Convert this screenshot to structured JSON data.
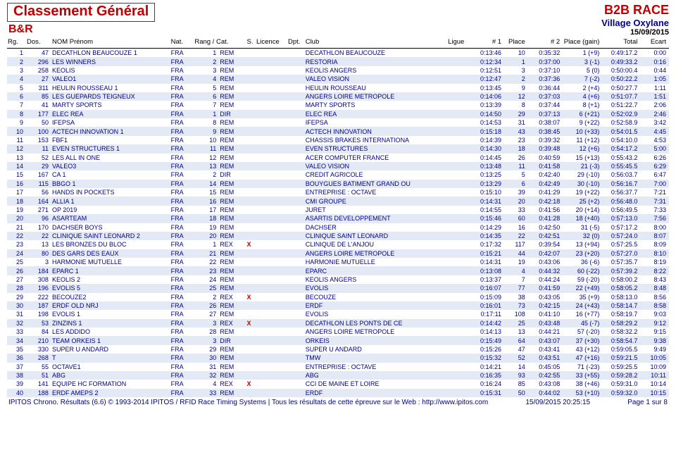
{
  "header": {
    "title": "Classement Général",
    "subtitle": "B&R",
    "race": "B2B RACE",
    "venue": "Village Oxylane",
    "date": "15/09/2015"
  },
  "columns": {
    "rg": "Rg.",
    "dos": "Dos.",
    "nom": "NOM Prénom",
    "nat": "Nat.",
    "rc": "Rang / Cat.",
    "s": "S.",
    "lic": "Licence",
    "dpt": "Dpt.",
    "club": "Club",
    "ligue": "Ligue",
    "n1": "# 1",
    "pl1": "Place",
    "n2": "# 2",
    "pl2": "Place (gain)",
    "tot": "Total",
    "ec": "Ecart"
  },
  "rows": [
    {
      "rg": 1,
      "dos": 47,
      "nom": "DECATHLON BEAUCOUZE 1",
      "nat": "FRA",
      "rc": 1,
      "s": "REM",
      "x": "",
      "club": "DECATHLON BEAUCOUZE",
      "n1": "0:13:46",
      "pl1": 10,
      "n2": "0:35:32",
      "pl2": "1 (+9)",
      "tot": "0:49:17.2",
      "ec": "0:00"
    },
    {
      "rg": 2,
      "dos": 296,
      "nom": "LES WINNERS",
      "nat": "FRA",
      "rc": 2,
      "s": "REM",
      "x": "",
      "club": "RESTORIA",
      "n1": "0:12:34",
      "pl1": 1,
      "n2": "0:37:00",
      "pl2": "3 (-1)",
      "tot": "0:49:33.2",
      "ec": "0:16"
    },
    {
      "rg": 3,
      "dos": 258,
      "nom": "KEOLIS",
      "nat": "FRA",
      "rc": 3,
      "s": "REM",
      "x": "",
      "club": "KEOLIS ANGERS",
      "n1": "0:12:51",
      "pl1": 3,
      "n2": "0:37:10",
      "pl2": "5 (0)",
      "tot": "0:50:00.4",
      "ec": "0:44"
    },
    {
      "rg": 4,
      "dos": 27,
      "nom": "VALEO1",
      "nat": "FRA",
      "rc": 4,
      "s": "REM",
      "x": "",
      "club": "VALEO VISION",
      "n1": "0:12:47",
      "pl1": 2,
      "n2": "0:37:36",
      "pl2": "7 (-2)",
      "tot": "0:50:22.2",
      "ec": "1:05"
    },
    {
      "rg": 5,
      "dos": 311,
      "nom": "HEULIN ROUSSEAU 1",
      "nat": "FRA",
      "rc": 5,
      "s": "REM",
      "x": "",
      "club": "HEULIN ROUSSEAU",
      "n1": "0:13:45",
      "pl1": 9,
      "n2": "0:36:44",
      "pl2": "2 (+4)",
      "tot": "0:50:27.7",
      "ec": "1:11"
    },
    {
      "rg": 6,
      "dos": 85,
      "nom": "LES GUEPARDS TEIGNEUX",
      "nat": "FRA",
      "rc": 6,
      "s": "REM",
      "x": "",
      "club": "ANGERS LOIRE METROPOLE",
      "n1": "0:14:06",
      "pl1": 12,
      "n2": "0:37:03",
      "pl2": "4 (+6)",
      "tot": "0:51:07.7",
      "ec": "1:51"
    },
    {
      "rg": 7,
      "dos": 41,
      "nom": "MARTY SPORTS",
      "nat": "FRA",
      "rc": 7,
      "s": "REM",
      "x": "",
      "club": "MARTY SPORTS",
      "n1": "0:13:39",
      "pl1": 8,
      "n2": "0:37:44",
      "pl2": "8 (+1)",
      "tot": "0:51:22.7",
      "ec": "2:06"
    },
    {
      "rg": 8,
      "dos": 177,
      "nom": "ELEC REA",
      "nat": "FRA",
      "rc": 1,
      "s": "DIR",
      "x": "",
      "club": "ELEC REA",
      "n1": "0:14:50",
      "pl1": 29,
      "n2": "0:37:13",
      "pl2": "6 (+21)",
      "tot": "0:52:02.9",
      "ec": "2:46"
    },
    {
      "rg": 9,
      "dos": 50,
      "nom": "IFEPSA",
      "nat": "FRA",
      "rc": 8,
      "s": "REM",
      "x": "",
      "club": "IFEPSA",
      "n1": "0:14:53",
      "pl1": 31,
      "n2": "0:38:07",
      "pl2": "9 (+22)",
      "tot": "0:52:58.9",
      "ec": "3:42"
    },
    {
      "rg": 10,
      "dos": 100,
      "nom": "ACTECH INNOVATION 1",
      "nat": "FRA",
      "rc": 9,
      "s": "REM",
      "x": "",
      "club": "ACTECH INNOVATION",
      "n1": "0:15:18",
      "pl1": 43,
      "n2": "0:38:45",
      "pl2": "10 (+33)",
      "tot": "0:54:01.5",
      "ec": "4:45"
    },
    {
      "rg": 11,
      "dos": 153,
      "nom": "FBF1",
      "nat": "FRA",
      "rc": 10,
      "s": "REM",
      "x": "",
      "club": "CHASSIS BRAKES INTERNATIONA",
      "n1": "0:14:39",
      "pl1": 23,
      "n2": "0:39:32",
      "pl2": "11 (+12)",
      "tot": "0:54:10.0",
      "ec": "4:53"
    },
    {
      "rg": 12,
      "dos": 11,
      "nom": "EVEN STRUCTURES 1",
      "nat": "FRA",
      "rc": 11,
      "s": "REM",
      "x": "",
      "club": "EVEN STRUCTURES",
      "n1": "0:14:30",
      "pl1": 18,
      "n2": "0:39:48",
      "pl2": "12 (+6)",
      "tot": "0:54:17.2",
      "ec": "5:00"
    },
    {
      "rg": 13,
      "dos": 52,
      "nom": "LES ALL IN ONE",
      "nat": "FRA",
      "rc": 12,
      "s": "REM",
      "x": "",
      "club": "ACER COMPUTER FRANCE",
      "n1": "0:14:45",
      "pl1": 26,
      "n2": "0:40:59",
      "pl2": "15 (+13)",
      "tot": "0:55:43.2",
      "ec": "6:26"
    },
    {
      "rg": 14,
      "dos": 29,
      "nom": "VALEO3",
      "nat": "FRA",
      "rc": 13,
      "s": "REM",
      "x": "",
      "club": "VALEO VISION",
      "n1": "0:13:48",
      "pl1": 11,
      "n2": "0:41:58",
      "pl2": "21 (-3)",
      "tot": "0:55:45.5",
      "ec": "6:29"
    },
    {
      "rg": 15,
      "dos": 167,
      "nom": "CA 1",
      "nat": "FRA",
      "rc": 2,
      "s": "DIR",
      "x": "",
      "club": "CREDIT AGRICOLE",
      "n1": "0:13:25",
      "pl1": 5,
      "n2": "0:42:40",
      "pl2": "29 (-10)",
      "tot": "0:56:03.7",
      "ec": "6:47"
    },
    {
      "rg": 16,
      "dos": 115,
      "nom": "BBGO 1",
      "nat": "FRA",
      "rc": 14,
      "s": "REM",
      "x": "",
      "club": "BOUYGUES BATIMENT GRAND OU",
      "n1": "0:13:29",
      "pl1": 6,
      "n2": "0:42:49",
      "pl2": "30 (-10)",
      "tot": "0:56:16.7",
      "ec": "7:00"
    },
    {
      "rg": 17,
      "dos": 56,
      "nom": "HANDS IN POCKETS",
      "nat": "FRA",
      "rc": 15,
      "s": "REM",
      "x": "",
      "club": "ENTREPRISE : OCTAVE",
      "n1": "0:15:10",
      "pl1": 39,
      "n2": "0:41:29",
      "pl2": "19 (+22)",
      "tot": "0:56:37.7",
      "ec": "7:21"
    },
    {
      "rg": 18,
      "dos": 164,
      "nom": "ALLIA 1",
      "nat": "FRA",
      "rc": 16,
      "s": "REM",
      "x": "",
      "club": "CMI GROUPE",
      "n1": "0:14:31",
      "pl1": 20,
      "n2": "0:42:18",
      "pl2": "25 (+2)",
      "tot": "0:56:48.0",
      "ec": "7:31"
    },
    {
      "rg": 19,
      "dos": 271,
      "nom": "OP 2019",
      "nat": "FRA",
      "rc": 17,
      "s": "REM",
      "x": "",
      "club": "JURET",
      "n1": "0:14:55",
      "pl1": 33,
      "n2": "0:41:56",
      "pl2": "20 (+14)",
      "tot": "0:56:49.5",
      "ec": "7:33"
    },
    {
      "rg": 20,
      "dos": 96,
      "nom": "ASARTEAM",
      "nat": "FRA",
      "rc": 18,
      "s": "REM",
      "x": "",
      "club": "ASARTIS DEVELOPPEMENT",
      "n1": "0:15:46",
      "pl1": 60,
      "n2": "0:41:28",
      "pl2": "18 (+40)",
      "tot": "0:57:13.0",
      "ec": "7:56"
    },
    {
      "rg": 21,
      "dos": 170,
      "nom": "DACHSER BOYS",
      "nat": "FRA",
      "rc": 19,
      "s": "REM",
      "x": "",
      "club": "DACHSER",
      "n1": "0:14:29",
      "pl1": 16,
      "n2": "0:42:50",
      "pl2": "31 (-5)",
      "tot": "0:57:17.2",
      "ec": "8:00"
    },
    {
      "rg": 22,
      "dos": 22,
      "nom": "CLINIQUE SAINT LEONARD 2",
      "nat": "FRA",
      "rc": 20,
      "s": "REM",
      "x": "",
      "club": "CLINIQUE SAINT LEONARD",
      "n1": "0:14:35",
      "pl1": 22,
      "n2": "0:42:51",
      "pl2": "32 (0)",
      "tot": "0:57:24.0",
      "ec": "8:07"
    },
    {
      "rg": 23,
      "dos": 13,
      "nom": "LES BRONZES DU BLOC",
      "nat": "FRA",
      "rc": 1,
      "s": "REX",
      "x": "X",
      "club": "CLINIQUE DE L'ANJOU",
      "n1": "0:17:32",
      "pl1": 117,
      "n2": "0:39:54",
      "pl2": "13 (+94)",
      "tot": "0:57:25.5",
      "ec": "8:09"
    },
    {
      "rg": 24,
      "dos": 80,
      "nom": "DES GARS DES EAUX",
      "nat": "FRA",
      "rc": 21,
      "s": "REM",
      "x": "",
      "club": "ANGERS LOIRE METROPOLE",
      "n1": "0:15:21",
      "pl1": 44,
      "n2": "0:42:07",
      "pl2": "23 (+20)",
      "tot": "0:57:27.0",
      "ec": "8:10"
    },
    {
      "rg": 25,
      "dos": 3,
      "nom": "HARMONIE MUTUELLE",
      "nat": "FRA",
      "rc": 22,
      "s": "REM",
      "x": "",
      "club": "HARMONIE MUTUELLE",
      "n1": "0:14:31",
      "pl1": 19,
      "n2": "0:43:06",
      "pl2": "36 (-6)",
      "tot": "0:57:35.7",
      "ec": "8:19"
    },
    {
      "rg": 26,
      "dos": 184,
      "nom": "EPARC 1",
      "nat": "FRA",
      "rc": 23,
      "s": "REM",
      "x": "",
      "club": "EPARC",
      "n1": "0:13:08",
      "pl1": 4,
      "n2": "0:44:32",
      "pl2": "60 (-22)",
      "tot": "0:57:39.2",
      "ec": "8:22"
    },
    {
      "rg": 27,
      "dos": 308,
      "nom": "KEOLIS 2",
      "nat": "FRA",
      "rc": 24,
      "s": "REM",
      "x": "",
      "club": "KEOLIS ANGERS",
      "n1": "0:13:37",
      "pl1": 7,
      "n2": "0:44:24",
      "pl2": "59 (-20)",
      "tot": "0:58:00.2",
      "ec": "8:43"
    },
    {
      "rg": 28,
      "dos": 196,
      "nom": "EVOLIS 5",
      "nat": "FRA",
      "rc": 25,
      "s": "REM",
      "x": "",
      "club": "EVOLIS",
      "n1": "0:16:07",
      "pl1": 77,
      "n2": "0:41:59",
      "pl2": "22 (+49)",
      "tot": "0:58:05.2",
      "ec": "8:48"
    },
    {
      "rg": 29,
      "dos": 222,
      "nom": "BECOUZE2",
      "nat": "FRA",
      "rc": 2,
      "s": "REX",
      "x": "X",
      "club": "BECOUZE",
      "n1": "0:15:09",
      "pl1": 38,
      "n2": "0:43:05",
      "pl2": "35 (+9)",
      "tot": "0:58:13.0",
      "ec": "8:56"
    },
    {
      "rg": 30,
      "dos": 187,
      "nom": "ERDF OLD NRJ",
      "nat": "FRA",
      "rc": 26,
      "s": "REM",
      "x": "",
      "club": "ERDF",
      "n1": "0:16:01",
      "pl1": 73,
      "n2": "0:42:15",
      "pl2": "24 (+43)",
      "tot": "0:58:14.7",
      "ec": "8:58"
    },
    {
      "rg": 31,
      "dos": 198,
      "nom": "EVOLIS 1",
      "nat": "FRA",
      "rc": 27,
      "s": "REM",
      "x": "",
      "club": "EVOLIS",
      "n1": "0:17:11",
      "pl1": 108,
      "n2": "0:41:10",
      "pl2": "16 (+77)",
      "tot": "0:58:19.7",
      "ec": "9:03"
    },
    {
      "rg": 32,
      "dos": 53,
      "nom": "ZINZINS 1",
      "nat": "FRA",
      "rc": 3,
      "s": "REX",
      "x": "X",
      "club": "DECATHLON LES PONTS DE CE",
      "n1": "0:14:42",
      "pl1": 25,
      "n2": "0:43:48",
      "pl2": "45 (-7)",
      "tot": "0:58:29.2",
      "ec": "9:12"
    },
    {
      "rg": 33,
      "dos": 84,
      "nom": "LES ADDIDO",
      "nat": "FRA",
      "rc": 28,
      "s": "REM",
      "x": "",
      "club": "ANGERS LOIRE METROPOLE",
      "n1": "0:14:13",
      "pl1": 13,
      "n2": "0:44:21",
      "pl2": "57 (-20)",
      "tot": "0:58:32.2",
      "ec": "9:15"
    },
    {
      "rg": 34,
      "dos": 210,
      "nom": "TEAM ORKEIS 1",
      "nat": "FRA",
      "rc": 3,
      "s": "DIR",
      "x": "",
      "club": "ORKEIS",
      "n1": "0:15:49",
      "pl1": 64,
      "n2": "0:43:07",
      "pl2": "37 (+30)",
      "tot": "0:58:54.7",
      "ec": "9:38"
    },
    {
      "rg": 35,
      "dos": 330,
      "nom": "SUPER U ANDARD",
      "nat": "FRA",
      "rc": 29,
      "s": "REM",
      "x": "",
      "club": "SUPER U ANDARD",
      "n1": "0:15:26",
      "pl1": 47,
      "n2": "0:43:41",
      "pl2": "43 (+12)",
      "tot": "0:59:05.5",
      "ec": "9:49"
    },
    {
      "rg": 36,
      "dos": 268,
      "nom": "T",
      "nat": "FRA",
      "rc": 30,
      "s": "REM",
      "x": "",
      "club": "TMW",
      "n1": "0:15:32",
      "pl1": 52,
      "n2": "0:43:51",
      "pl2": "47 (+16)",
      "tot": "0:59:21.5",
      "ec": "10:05"
    },
    {
      "rg": 37,
      "dos": 55,
      "nom": "OCTAVE1",
      "nat": "FRA",
      "rc": 31,
      "s": "REM",
      "x": "",
      "club": "ENTREPRISE : OCTAVE",
      "n1": "0:14:21",
      "pl1": 14,
      "n2": "0:45:05",
      "pl2": "71 (-23)",
      "tot": "0:59:25.5",
      "ec": "10:09"
    },
    {
      "rg": 38,
      "dos": 51,
      "nom": "ABG",
      "nat": "FRA",
      "rc": 32,
      "s": "REM",
      "x": "",
      "club": "ABG",
      "n1": "0:16:35",
      "pl1": 93,
      "n2": "0:42:55",
      "pl2": "33 (+55)",
      "tot": "0:59:28.2",
      "ec": "10:11"
    },
    {
      "rg": 39,
      "dos": 141,
      "nom": "EQUIPE HC FORMATION",
      "nat": "FRA",
      "rc": 4,
      "s": "REX",
      "x": "X",
      "club": "CCI DE MAINE ET LOIRE",
      "n1": "0:16:24",
      "pl1": 85,
      "n2": "0:43:08",
      "pl2": "38 (+46)",
      "tot": "0:59:31.0",
      "ec": "10:14"
    },
    {
      "rg": 40,
      "dos": 188,
      "nom": "ERDF AMEPS 2",
      "nat": "FRA",
      "rc": 33,
      "s": "REM",
      "x": "",
      "club": "ERDF",
      "n1": "0:15:31",
      "pl1": 50,
      "n2": "0:44:02",
      "pl2": "53 (+10)",
      "tot": "0:59:32.0",
      "ec": "10:15"
    }
  ],
  "footer": {
    "left": "IPITOS Chrono. Résultats (6.6) © 1993-2014 IPITOS / RFID Race Timing Systems | Tous les résultats de cette épreuve sur le Web : http://www.ipitos.com",
    "center": "15/09/2015 20:25:15",
    "right": "Page 1 sur 8"
  },
  "colors": {
    "header_red": "#c00000",
    "link_blue": "#000088",
    "row_stripe": "#e4eaf5"
  }
}
